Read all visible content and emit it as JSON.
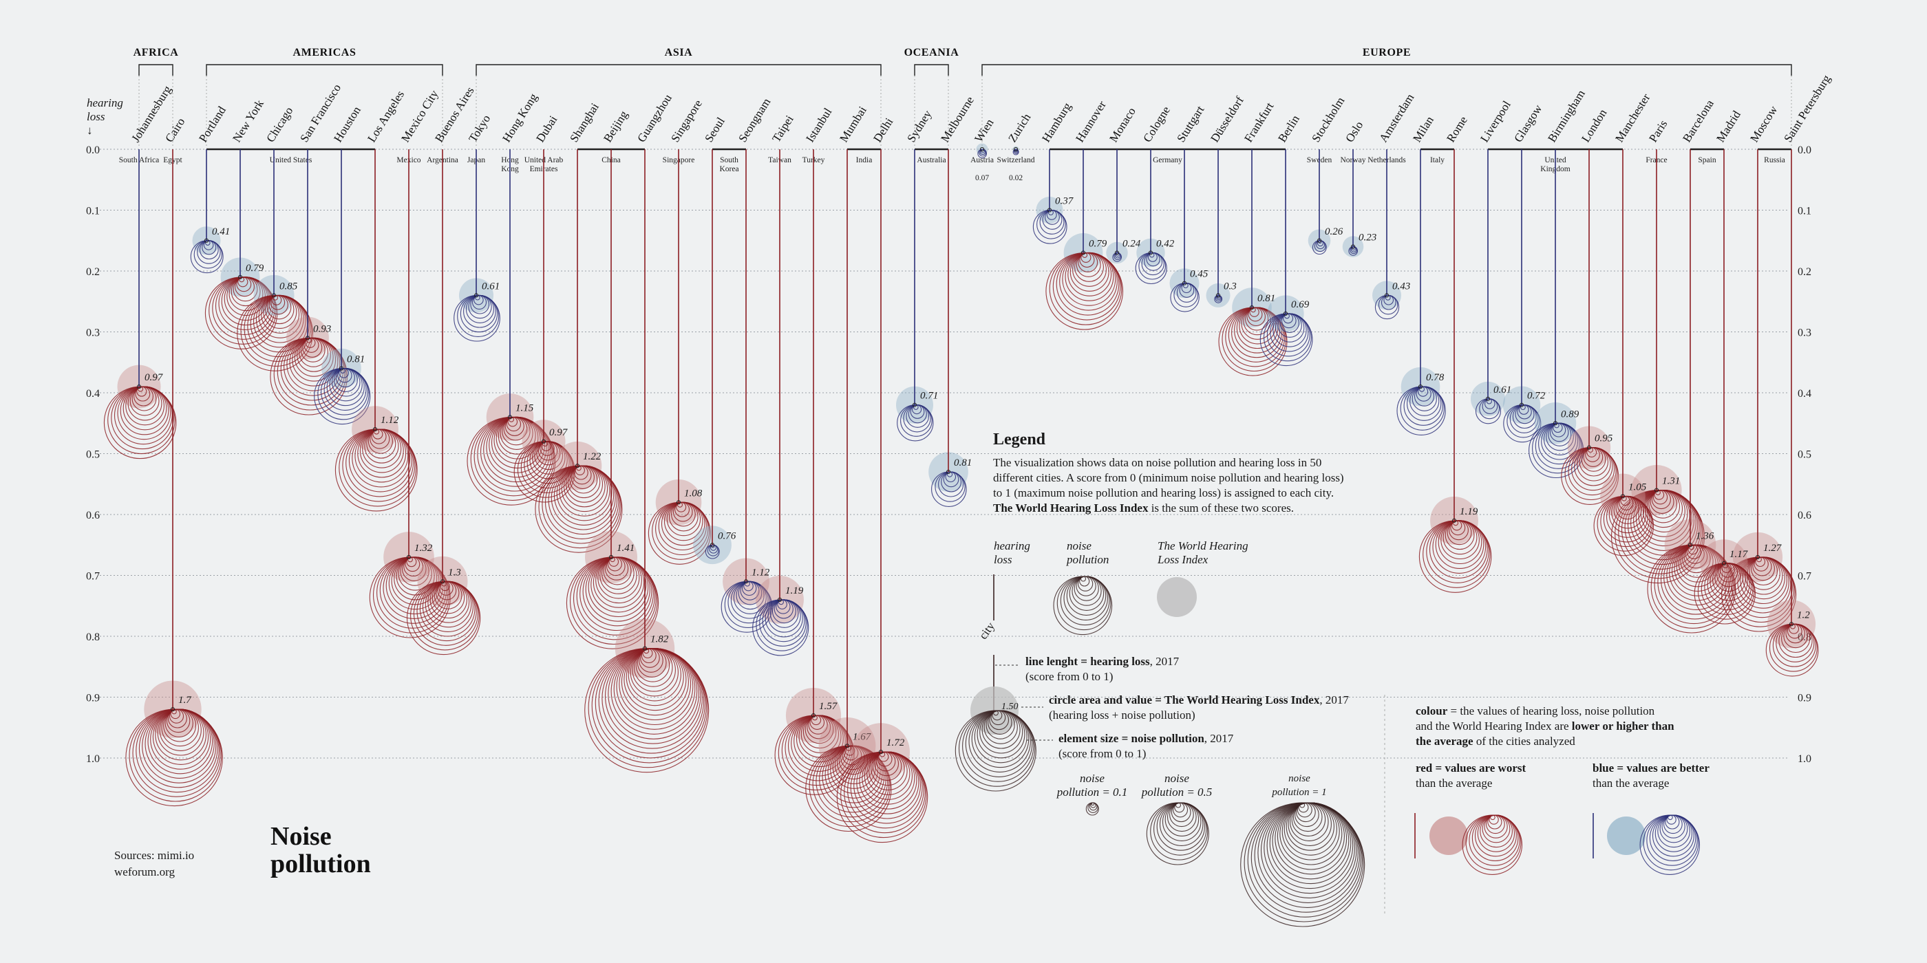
{
  "title": [
    "Noise",
    "pollution"
  ],
  "sources": [
    "Sources: mimi.io",
    "weforum.org"
  ],
  "colors": {
    "background": "#eff1f2",
    "red": "#8b1d22",
    "blue": "#2b2f78",
    "red_fill": "#c98d8d",
    "blue_fill": "#8fb0c8",
    "neutral": "#3a2323"
  },
  "chart_data": {
    "type": "scatter",
    "title": "Noise pollution",
    "ylabel": "hearing loss",
    "ylabel_arrow": "↓",
    "ylim": [
      0,
      1.0
    ],
    "y_ticks": [
      "0.0",
      "0.1",
      "0.2",
      "0.3",
      "0.4",
      "0.5",
      "0.6",
      "0.7",
      "0.8",
      "0.9",
      "1.0"
    ],
    "grid": true,
    "regions": [
      {
        "name": "AFRICA",
        "first": 0,
        "last": 1
      },
      {
        "name": "AMERICAS",
        "first": 2,
        "last": 9
      },
      {
        "name": "ASIA",
        "first": 10,
        "last": 22
      },
      {
        "name": "OCEANIA",
        "first": 23,
        "last": 24
      },
      {
        "name": "EUROPE",
        "first": 25,
        "last": 49
      }
    ],
    "countries": [
      {
        "name": "South Africa",
        "first": 0,
        "last": 0
      },
      {
        "name": "Egypt",
        "first": 1,
        "last": 1
      },
      {
        "name": "United States",
        "first": 2,
        "last": 7
      },
      {
        "name": "Mexico",
        "first": 8,
        "last": 8
      },
      {
        "name": "Argentina",
        "first": 9,
        "last": 9
      },
      {
        "name": "Japan",
        "first": 10,
        "last": 10
      },
      {
        "name": "Hong Kong",
        "first": 11,
        "last": 11
      },
      {
        "name": "United Arab Emirates",
        "first": 12,
        "last": 12
      },
      {
        "name": "China",
        "first": 13,
        "last": 15
      },
      {
        "name": "Singapore",
        "first": 16,
        "last": 16
      },
      {
        "name": "South Korea",
        "first": 17,
        "last": 18
      },
      {
        "name": "Taiwan",
        "first": 19,
        "last": 19
      },
      {
        "name": "Turkey",
        "first": 20,
        "last": 20
      },
      {
        "name": "India",
        "first": 21,
        "last": 22
      },
      {
        "name": "Australia",
        "first": 23,
        "last": 24
      },
      {
        "name": "Austria",
        "first": 25,
        "last": 25
      },
      {
        "name": "Switzerland",
        "first": 26,
        "last": 26
      },
      {
        "name": "Germany",
        "first": 27,
        "last": 34
      },
      {
        "name": "Sweden",
        "first": 35,
        "last": 35
      },
      {
        "name": "Norway",
        "first": 36,
        "last": 36
      },
      {
        "name": "Netherlands",
        "first": 37,
        "last": 37
      },
      {
        "name": "Italy",
        "first": 38,
        "last": 39
      },
      {
        "name": "United Kingdom",
        "first": 40,
        "last": 44
      },
      {
        "name": "France",
        "first": 45,
        "last": 45
      },
      {
        "name": "Spain",
        "first": 46,
        "last": 47
      },
      {
        "name": "Russia",
        "first": 48,
        "last": 49
      }
    ],
    "cities": [
      {
        "name": "Johannesburg",
        "hearing_loss": 0.39,
        "index": 0.97,
        "colors": [
          "b",
          "r",
          "r"
        ]
      },
      {
        "name": "Cairo",
        "hearing_loss": 0.92,
        "index": 1.7,
        "colors": [
          "r",
          "r",
          "r"
        ]
      },
      {
        "name": "Portland",
        "hearing_loss": 0.15,
        "index": 0.41,
        "colors": [
          "b",
          "b",
          "b"
        ]
      },
      {
        "name": "New York",
        "hearing_loss": 0.21,
        "index": 0.79,
        "colors": [
          "b",
          "b",
          "r"
        ]
      },
      {
        "name": "Chicago",
        "hearing_loss": 0.24,
        "index": 0.85,
        "colors": [
          "b",
          "b",
          "r"
        ]
      },
      {
        "name": "San Francisco",
        "hearing_loss": 0.31,
        "index": 0.93,
        "colors": [
          "b",
          "r",
          "r"
        ]
      },
      {
        "name": "Houston",
        "hearing_loss": 0.36,
        "index": 0.81,
        "colors": [
          "b",
          "b",
          "b"
        ]
      },
      {
        "name": "Los Angeles",
        "hearing_loss": 0.46,
        "index": 1.12,
        "colors": [
          "r",
          "r",
          "r"
        ]
      },
      {
        "name": "Mexico City",
        "hearing_loss": 0.67,
        "index": 1.32,
        "colors": [
          "r",
          "r",
          "r"
        ]
      },
      {
        "name": "Buenos Aires",
        "hearing_loss": 0.71,
        "index": 1.3,
        "colors": [
          "r",
          "r",
          "r"
        ]
      },
      {
        "name": "Tokyo",
        "hearing_loss": 0.24,
        "index": 0.61,
        "colors": [
          "b",
          "b",
          "b"
        ]
      },
      {
        "name": "Hong Kong",
        "hearing_loss": 0.44,
        "index": 1.15,
        "colors": [
          "b",
          "r",
          "r"
        ]
      },
      {
        "name": "Dubai",
        "hearing_loss": 0.48,
        "index": 0.97,
        "colors": [
          "r",
          "r",
          "r"
        ]
      },
      {
        "name": "Shanghai",
        "hearing_loss": 0.52,
        "index": 1.22,
        "colors": [
          "r",
          "r",
          "r"
        ]
      },
      {
        "name": "Beijing",
        "hearing_loss": 0.67,
        "index": 1.41,
        "colors": [
          "r",
          "r",
          "r"
        ]
      },
      {
        "name": "Guangzhou",
        "hearing_loss": 0.82,
        "index": 1.82,
        "colors": [
          "r",
          "r",
          "r"
        ]
      },
      {
        "name": "Singapore",
        "hearing_loss": 0.58,
        "index": 1.08,
        "colors": [
          "r",
          "r",
          "r"
        ]
      },
      {
        "name": "Seoul",
        "hearing_loss": 0.65,
        "index": 0.76,
        "colors": [
          "r",
          "b",
          "b"
        ]
      },
      {
        "name": "Seongnam",
        "hearing_loss": 0.71,
        "index": 1.12,
        "colors": [
          "r",
          "r",
          "b"
        ]
      },
      {
        "name": "Taipei",
        "hearing_loss": 0.74,
        "index": 1.19,
        "colors": [
          "r",
          "r",
          "b"
        ]
      },
      {
        "name": "Istanbul",
        "hearing_loss": 0.93,
        "index": 1.57,
        "colors": [
          "r",
          "r",
          "r"
        ]
      },
      {
        "name": "Mumbai",
        "hearing_loss": 0.98,
        "index": 1.67,
        "colors": [
          "r",
          "r",
          "r"
        ]
      },
      {
        "name": "Delhi",
        "hearing_loss": 0.99,
        "index": 1.72,
        "colors": [
          "r",
          "r",
          "r"
        ]
      },
      {
        "name": "Sydney",
        "hearing_loss": 0.42,
        "index": 0.71,
        "colors": [
          "b",
          "b",
          "b"
        ]
      },
      {
        "name": "Melbourne",
        "hearing_loss": 0.53,
        "index": 0.81,
        "colors": [
          "r",
          "b",
          "b"
        ]
      },
      {
        "name": "Wien",
        "hearing_loss": 0.0,
        "index": 0.07,
        "colors": [
          "b",
          "b",
          "b"
        ]
      },
      {
        "name": "Zurich",
        "hearing_loss": 0.0,
        "index": 0.02,
        "colors": [
          "b",
          "b",
          "b"
        ]
      },
      {
        "name": "Hamburg",
        "hearing_loss": 0.1,
        "index": 0.37,
        "colors": [
          "b",
          "b",
          "b"
        ]
      },
      {
        "name": "Hannover",
        "hearing_loss": 0.17,
        "index": 0.79,
        "colors": [
          "b",
          "b",
          "r"
        ]
      },
      {
        "name": "Monaco",
        "hearing_loss": 0.17,
        "index": 0.24,
        "colors": [
          "b",
          "b",
          "b"
        ]
      },
      {
        "name": "Cologne",
        "hearing_loss": 0.17,
        "index": 0.42,
        "colors": [
          "b",
          "b",
          "b"
        ]
      },
      {
        "name": "Stuttgart",
        "hearing_loss": 0.22,
        "index": 0.45,
        "colors": [
          "b",
          "b",
          "b"
        ]
      },
      {
        "name": "Düsseldorf",
        "hearing_loss": 0.24,
        "index": 0.3,
        "colors": [
          "b",
          "b",
          "b"
        ]
      },
      {
        "name": "Frankfurt",
        "hearing_loss": 0.26,
        "index": 0.81,
        "colors": [
          "b",
          "b",
          "r"
        ]
      },
      {
        "name": "Berlin",
        "hearing_loss": 0.27,
        "index": 0.69,
        "colors": [
          "b",
          "b",
          "b"
        ]
      },
      {
        "name": "Stockholm",
        "hearing_loss": 0.15,
        "index": 0.26,
        "colors": [
          "b",
          "b",
          "b"
        ]
      },
      {
        "name": "Oslo",
        "hearing_loss": 0.16,
        "index": 0.23,
        "colors": [
          "b",
          "b",
          "b"
        ]
      },
      {
        "name": "Amsterdam",
        "hearing_loss": 0.24,
        "index": 0.43,
        "colors": [
          "b",
          "b",
          "b"
        ]
      },
      {
        "name": "Milan",
        "hearing_loss": 0.39,
        "index": 0.78,
        "colors": [
          "b",
          "b",
          "b"
        ]
      },
      {
        "name": "Rome",
        "hearing_loss": 0.61,
        "index": 1.19,
        "colors": [
          "r",
          "r",
          "r"
        ]
      },
      {
        "name": "Liverpool",
        "hearing_loss": 0.41,
        "index": 0.61,
        "colors": [
          "b",
          "b",
          "b"
        ]
      },
      {
        "name": "Glasgow",
        "hearing_loss": 0.42,
        "index": 0.72,
        "colors": [
          "b",
          "b",
          "b"
        ]
      },
      {
        "name": "Birmingham",
        "hearing_loss": 0.45,
        "index": 0.89,
        "colors": [
          "b",
          "b",
          "b"
        ]
      },
      {
        "name": "London",
        "hearing_loss": 0.49,
        "index": 0.95,
        "colors": [
          "r",
          "r",
          "r"
        ]
      },
      {
        "name": "Manchester",
        "hearing_loss": 0.57,
        "index": 1.05,
        "colors": [
          "r",
          "r",
          "r"
        ]
      },
      {
        "name": "Paris",
        "hearing_loss": 0.56,
        "index": 1.31,
        "colors": [
          "r",
          "r",
          "r"
        ]
      },
      {
        "name": "Barcelona",
        "hearing_loss": 0.65,
        "index": 1.36,
        "colors": [
          "r",
          "r",
          "r"
        ]
      },
      {
        "name": "Madrid",
        "hearing_loss": 0.68,
        "index": 1.17,
        "colors": [
          "r",
          "r",
          "r"
        ]
      },
      {
        "name": "Moscow",
        "hearing_loss": 0.67,
        "index": 1.27,
        "colors": [
          "r",
          "r",
          "r"
        ]
      },
      {
        "name": "Saint Petersburg",
        "hearing_loss": 0.78,
        "index": 1.2,
        "colors": [
          "r",
          "r",
          "r"
        ]
      }
    ]
  },
  "legend": {
    "title": "Legend",
    "intro": [
      "The visualization shows data on noise pollution and hearing loss in 50",
      "different cities. A score from 0 (minimum noise pollution and hearing loss)",
      "to 1 (maximum noise pollution and hearing loss) is assigned to each city."
    ],
    "intro_bold": "The World Hearing Loss Index",
    "intro_end": " is the sum of these two scores.",
    "icon_labels": [
      [
        "hearing",
        "loss"
      ],
      [
        "noise",
        "pollution"
      ],
      [
        "The World Hearing",
        "Loss Index"
      ]
    ],
    "city_label": "city",
    "line_bold": "line lenght = hearing loss",
    "line_rest": ", 2017",
    "line_sub": "(score from 0 to 1)",
    "circle_bold": "circle area and value = The World Hearing Loss Index",
    "circle_rest": ", 2017",
    "circle_sub": "(hearing loss + noise pollution)",
    "circle_example_value": "1.50",
    "element_bold": "element size = noise pollution",
    "element_rest": ", 2017",
    "element_sub": "(score from 0 to 1)",
    "noise_examples": [
      {
        "line1": "noise",
        "line2": "pollution = 0.1",
        "value": 0.1
      },
      {
        "line1": "noise",
        "line2": "pollution = 0.5",
        "value": 0.5
      },
      {
        "line1": "noise",
        "line2": "pollution = 1",
        "value": 1
      }
    ],
    "colour_bold": "colour",
    "colour_rest1": " = the values of hearing loss, noise pollution",
    "colour_rest2": "and the World Hearing Index are ",
    "colour_bold2": "lower or higher than",
    "colour_bold3": "the average",
    "colour_rest3": " of the cities analyzed",
    "red_bold": "red = values are worst",
    "red_sub": "than the average",
    "blue_bold": "blue = values are better",
    "blue_sub": "than the average"
  }
}
